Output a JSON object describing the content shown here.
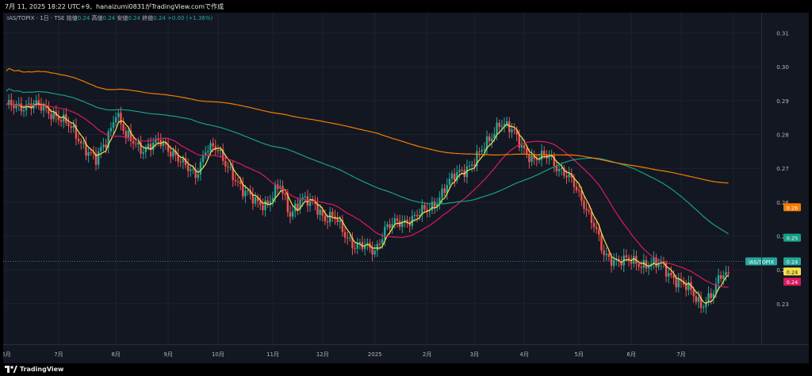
{
  "header": {
    "timestamp": "7月 11, 2025 18:22 UTC+9、hanaizumi0831がTradingView.comで作成"
  },
  "legend": {
    "symbol": "IAS/TOPIX · 1日 · TSE",
    "open_label": "始値",
    "open_value": "0.24",
    "high_label": "高値",
    "high_value": "0.24",
    "low_label": "安値",
    "low_value": "0.24",
    "close_label": "終値",
    "close_value": "0.24",
    "change": "+0.00 (+1.36%)"
  },
  "footer": {
    "brand": "TradingView",
    "logo_icon": "tradingview-logo-icon"
  },
  "colors": {
    "background": "#131722",
    "up": "#26a69a",
    "down": "#ef5350",
    "ma_yellow": "#f5e14b",
    "ma_pink": "#d81b60",
    "ma_teal": "#16a085",
    "ma_orange": "#f57c00",
    "grid": "#1e222d"
  },
  "chart_data": {
    "type": "candlestick",
    "title": "IAS/TOPIX",
    "ylim": [
      0.218,
      0.316
    ],
    "y_ticks": [
      0.31,
      0.3,
      0.29,
      0.28,
      0.27,
      0.26,
      0.25,
      0.24,
      0.23
    ],
    "y_tick_labels": [
      "0.31",
      "0.30",
      "0.29",
      "0.28",
      "0.27",
      "0.26",
      "0.25",
      "0.24",
      "0.23"
    ],
    "x_ticks": [
      0,
      21,
      44,
      65,
      85,
      107,
      127,
      148,
      169,
      188,
      208,
      230,
      251,
      271,
      292
    ],
    "x_tick_labels": [
      "6月",
      "7月",
      "8月",
      "9月",
      "10月",
      "11月",
      "12月",
      "2025",
      "2月",
      "3月",
      "4月",
      "5月",
      "6月",
      "7月",
      ""
    ],
    "price_labels": [
      {
        "text": "0.26",
        "value": 0.2585,
        "color": "#f57c00"
      },
      {
        "text": "0.25",
        "value": 0.2495,
        "color": "#16a085"
      },
      {
        "text": "IAS/TOPIX",
        "value": 0.2425,
        "color": "#26a69a"
      },
      {
        "text": "0.24",
        "value": 0.2425,
        "color": "#26a69a"
      },
      {
        "text": "0.24",
        "value": 0.2395,
        "color": "#f5e14b"
      },
      {
        "text": "0.24",
        "value": 0.2365,
        "color": "#d81b60"
      }
    ],
    "anchors": [
      [
        0,
        0.288
      ],
      [
        10,
        0.289
      ],
      [
        20,
        0.286
      ],
      [
        28,
        0.28
      ],
      [
        36,
        0.272
      ],
      [
        40,
        0.278
      ],
      [
        44,
        0.287
      ],
      [
        48,
        0.279
      ],
      [
        55,
        0.276
      ],
      [
        62,
        0.2775
      ],
      [
        67,
        0.275
      ],
      [
        72,
        0.27
      ],
      [
        76,
        0.268
      ],
      [
        80,
        0.276
      ],
      [
        84,
        0.2755
      ],
      [
        90,
        0.27
      ],
      [
        95,
        0.2625
      ],
      [
        100,
        0.261
      ],
      [
        105,
        0.259
      ],
      [
        110,
        0.265
      ],
      [
        114,
        0.257
      ],
      [
        118,
        0.26
      ],
      [
        124,
        0.26
      ],
      [
        128,
        0.255
      ],
      [
        132,
        0.255
      ],
      [
        140,
        0.247
      ],
      [
        148,
        0.246
      ],
      [
        152,
        0.252
      ],
      [
        158,
        0.254
      ],
      [
        165,
        0.256
      ],
      [
        170,
        0.258
      ],
      [
        176,
        0.264
      ],
      [
        182,
        0.269
      ],
      [
        188,
        0.272
      ],
      [
        192,
        0.276
      ],
      [
        198,
        0.284
      ],
      [
        204,
        0.28
      ],
      [
        208,
        0.276
      ],
      [
        212,
        0.272
      ],
      [
        218,
        0.274
      ],
      [
        222,
        0.27
      ],
      [
        228,
        0.265
      ],
      [
        232,
        0.26
      ],
      [
        236,
        0.253
      ],
      [
        240,
        0.244
      ],
      [
        246,
        0.243
      ],
      [
        252,
        0.242
      ],
      [
        258,
        0.242
      ],
      [
        263,
        0.241
      ],
      [
        268,
        0.238
      ],
      [
        274,
        0.234
      ],
      [
        279,
        0.23
      ],
      [
        284,
        0.233
      ],
      [
        287,
        0.238
      ],
      [
        290,
        0.239
      ]
    ]
  }
}
